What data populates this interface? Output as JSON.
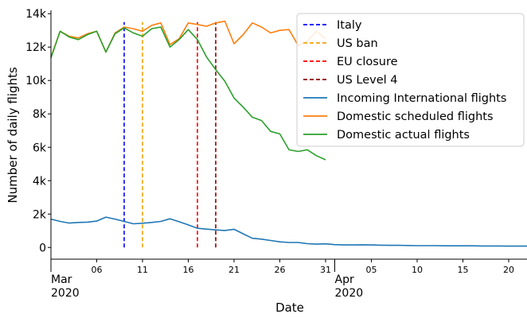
{
  "chart_data": {
    "type": "line",
    "title": "",
    "xlabel": "Date",
    "ylabel": "Number of daily flights",
    "ylim": [
      -700,
      14200
    ],
    "xlim": [
      "2020-03-01",
      "2020-04-22"
    ],
    "grid": false,
    "legend_position": "top-right",
    "y_ticks": [
      0,
      2000,
      4000,
      6000,
      8000,
      10000,
      12000,
      14000
    ],
    "y_tick_labels": [
      "0",
      "2k",
      "4k",
      "6k",
      "8k",
      "10k",
      "12k",
      "14k"
    ],
    "x_ticks": [
      {
        "date": "2020-03-01",
        "label": "Mar",
        "sublabel": "2020",
        "major": true
      },
      {
        "date": "2020-03-06",
        "label": "06",
        "sublabel": "",
        "major": false
      },
      {
        "date": "2020-03-11",
        "label": "11",
        "sublabel": "",
        "major": false
      },
      {
        "date": "2020-03-16",
        "label": "16",
        "sublabel": "",
        "major": false
      },
      {
        "date": "2020-03-21",
        "label": "21",
        "sublabel": "",
        "major": false
      },
      {
        "date": "2020-03-26",
        "label": "26",
        "sublabel": "",
        "major": false
      },
      {
        "date": "2020-03-31",
        "label": "31",
        "sublabel": "",
        "major": false
      },
      {
        "date": "2020-04-01",
        "label": "Apr",
        "sublabel": "2020",
        "major": true
      },
      {
        "date": "2020-04-05",
        "label": "05",
        "sublabel": "",
        "major": false
      },
      {
        "date": "2020-04-10",
        "label": "10",
        "sublabel": "",
        "major": false
      },
      {
        "date": "2020-04-15",
        "label": "15",
        "sublabel": "",
        "major": false
      },
      {
        "date": "2020-04-20",
        "label": "20",
        "sublabel": "",
        "major": false
      }
    ],
    "events": [
      {
        "name": "Italy",
        "date": "2020-03-09",
        "color": "#0000ff"
      },
      {
        "name": "US ban",
        "date": "2020-03-11",
        "color": "#f0a30a"
      },
      {
        "name": "EU closure",
        "date": "2020-03-17",
        "color": "#ff0000"
      },
      {
        "name": "US Level 4",
        "date": "2020-03-19",
        "color": "#8b0000"
      }
    ],
    "event_y_range": [
      0,
      13500
    ],
    "series": [
      {
        "name": "Incoming International flights",
        "color": "#1f77b4",
        "x": [
          "2020-03-01",
          "2020-03-02",
          "2020-03-03",
          "2020-03-04",
          "2020-03-05",
          "2020-03-06",
          "2020-03-07",
          "2020-03-08",
          "2020-03-09",
          "2020-03-10",
          "2020-03-11",
          "2020-03-12",
          "2020-03-13",
          "2020-03-14",
          "2020-03-15",
          "2020-03-16",
          "2020-03-17",
          "2020-03-18",
          "2020-03-19",
          "2020-03-20",
          "2020-03-21",
          "2020-03-22",
          "2020-03-23",
          "2020-03-24",
          "2020-03-25",
          "2020-03-26",
          "2020-03-27",
          "2020-03-28",
          "2020-03-29",
          "2020-03-30",
          "2020-03-31",
          "2020-04-01",
          "2020-04-02",
          "2020-04-03",
          "2020-04-04",
          "2020-04-05",
          "2020-04-06",
          "2020-04-07",
          "2020-04-08",
          "2020-04-09",
          "2020-04-10",
          "2020-04-11",
          "2020-04-12",
          "2020-04-13",
          "2020-04-14",
          "2020-04-15",
          "2020-04-16",
          "2020-04-17",
          "2020-04-18",
          "2020-04-19",
          "2020-04-20",
          "2020-04-21",
          "2020-04-22"
        ],
        "values": [
          1700,
          1560,
          1460,
          1500,
          1520,
          1580,
          1820,
          1700,
          1560,
          1420,
          1450,
          1500,
          1560,
          1720,
          1540,
          1350,
          1150,
          1100,
          1050,
          1020,
          1090,
          820,
          550,
          500,
          420,
          340,
          300,
          300,
          230,
          200,
          220,
          170,
          150,
          150,
          160,
          150,
          140,
          130,
          130,
          120,
          110,
          110,
          110,
          100,
          100,
          100,
          100,
          90,
          90,
          90,
          80,
          80,
          80
        ]
      },
      {
        "name": "Domestic scheduled flights",
        "color": "#ff7f0e",
        "x": [
          "2020-03-01",
          "2020-03-02",
          "2020-03-03",
          "2020-03-04",
          "2020-03-05",
          "2020-03-06",
          "2020-03-07",
          "2020-03-08",
          "2020-03-09",
          "2020-03-10",
          "2020-03-11",
          "2020-03-12",
          "2020-03-13",
          "2020-03-14",
          "2020-03-15",
          "2020-03-16",
          "2020-03-17",
          "2020-03-18",
          "2020-03-19",
          "2020-03-20",
          "2020-03-21",
          "2020-03-22",
          "2020-03-23",
          "2020-03-24",
          "2020-03-25",
          "2020-03-26",
          "2020-03-27",
          "2020-03-28",
          "2020-03-29",
          "2020-03-30",
          "2020-03-31"
        ],
        "values": [
          11400,
          12950,
          12650,
          12550,
          12800,
          12950,
          11700,
          12850,
          13200,
          13100,
          12950,
          13300,
          13450,
          12150,
          12500,
          13450,
          13350,
          13250,
          13450,
          13550,
          12200,
          12750,
          13450,
          13200,
          12850,
          13000,
          13050,
          12100,
          12350,
          12950,
          12500
        ]
      },
      {
        "name": "Domestic actual flights",
        "color": "#2ca02c",
        "x": [
          "2020-03-01",
          "2020-03-02",
          "2020-03-03",
          "2020-03-04",
          "2020-03-05",
          "2020-03-06",
          "2020-03-07",
          "2020-03-08",
          "2020-03-09",
          "2020-03-10",
          "2020-03-11",
          "2020-03-12",
          "2020-03-13",
          "2020-03-14",
          "2020-03-15",
          "2020-03-16",
          "2020-03-17",
          "2020-03-18",
          "2020-03-19",
          "2020-03-20",
          "2020-03-21",
          "2020-03-22",
          "2020-03-23",
          "2020-03-24",
          "2020-03-25",
          "2020-03-26",
          "2020-03-27",
          "2020-03-28",
          "2020-03-29",
          "2020-03-30",
          "2020-03-31"
        ],
        "values": [
          11350,
          12950,
          12600,
          12450,
          12750,
          12950,
          11700,
          12800,
          13150,
          12850,
          12650,
          13100,
          13200,
          12000,
          12450,
          13050,
          12450,
          11400,
          10650,
          9950,
          8950,
          8400,
          7800,
          7600,
          6950,
          6800,
          5850,
          5750,
          5850,
          5500,
          5250
        ]
      }
    ]
  }
}
